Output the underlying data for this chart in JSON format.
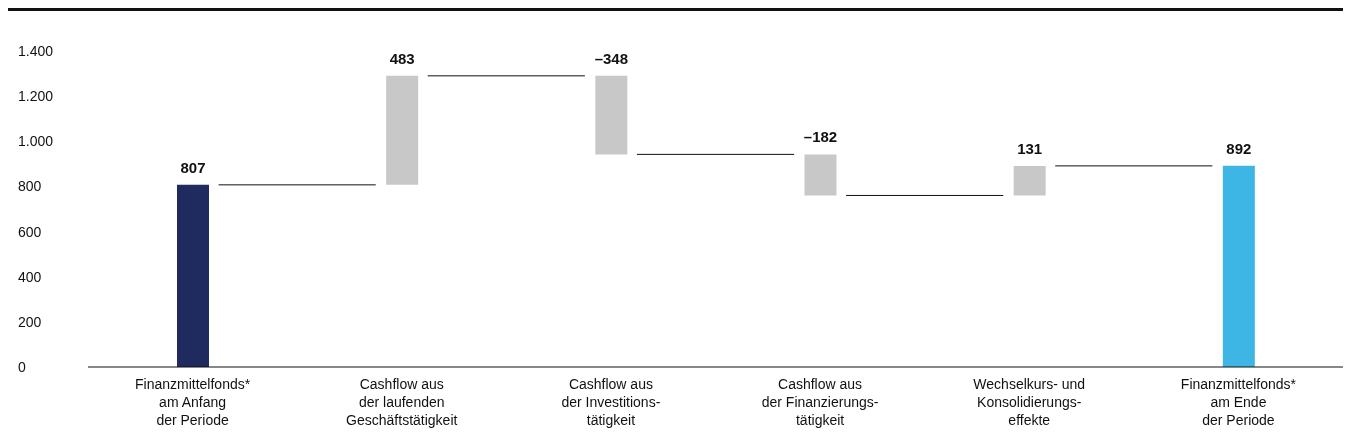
{
  "chart_data": {
    "type": "bar",
    "categories": [
      "Finanzmittelfonds*\nam Anfang\nder Periode",
      "Cashflow aus\nder laufenden\nGeschäftstätigkeit",
      "Cashflow aus\nder Investitions-\ntätigkeit",
      "Cashflow aus\nder Finanzierungs-\ntätigkeit",
      "Wechselkurs- und\nKonsolidierungs-\neffekte",
      "Finanzmittelfonds*\nam Ende\nder Periode"
    ],
    "values": [
      807,
      483,
      -348,
      -182,
      131,
      892
    ],
    "base": [
      0,
      807,
      1290,
      942,
      760,
      0
    ],
    "colors": [
      "#1f2a5e",
      "#c8c8c8",
      "#c8c8c8",
      "#c8c8c8",
      "#c8c8c8",
      "#3db6e6"
    ],
    "value_labels": [
      "807",
      "483",
      "–348",
      "–182",
      "131",
      "892"
    ],
    "ylim": [
      0,
      1400
    ],
    "yticks": [
      {
        "value": 0,
        "label": "0"
      },
      {
        "value": 200,
        "label": "200"
      },
      {
        "value": 400,
        "label": "400"
      },
      {
        "value": 600,
        "label": "600"
      },
      {
        "value": 800,
        "label": "800"
      },
      {
        "value": 1000,
        "label": "1.000"
      },
      {
        "value": 1200,
        "label": "1.200"
      },
      {
        "value": 1400,
        "label": "1.400"
      }
    ],
    "grid": false,
    "legend": false
  }
}
